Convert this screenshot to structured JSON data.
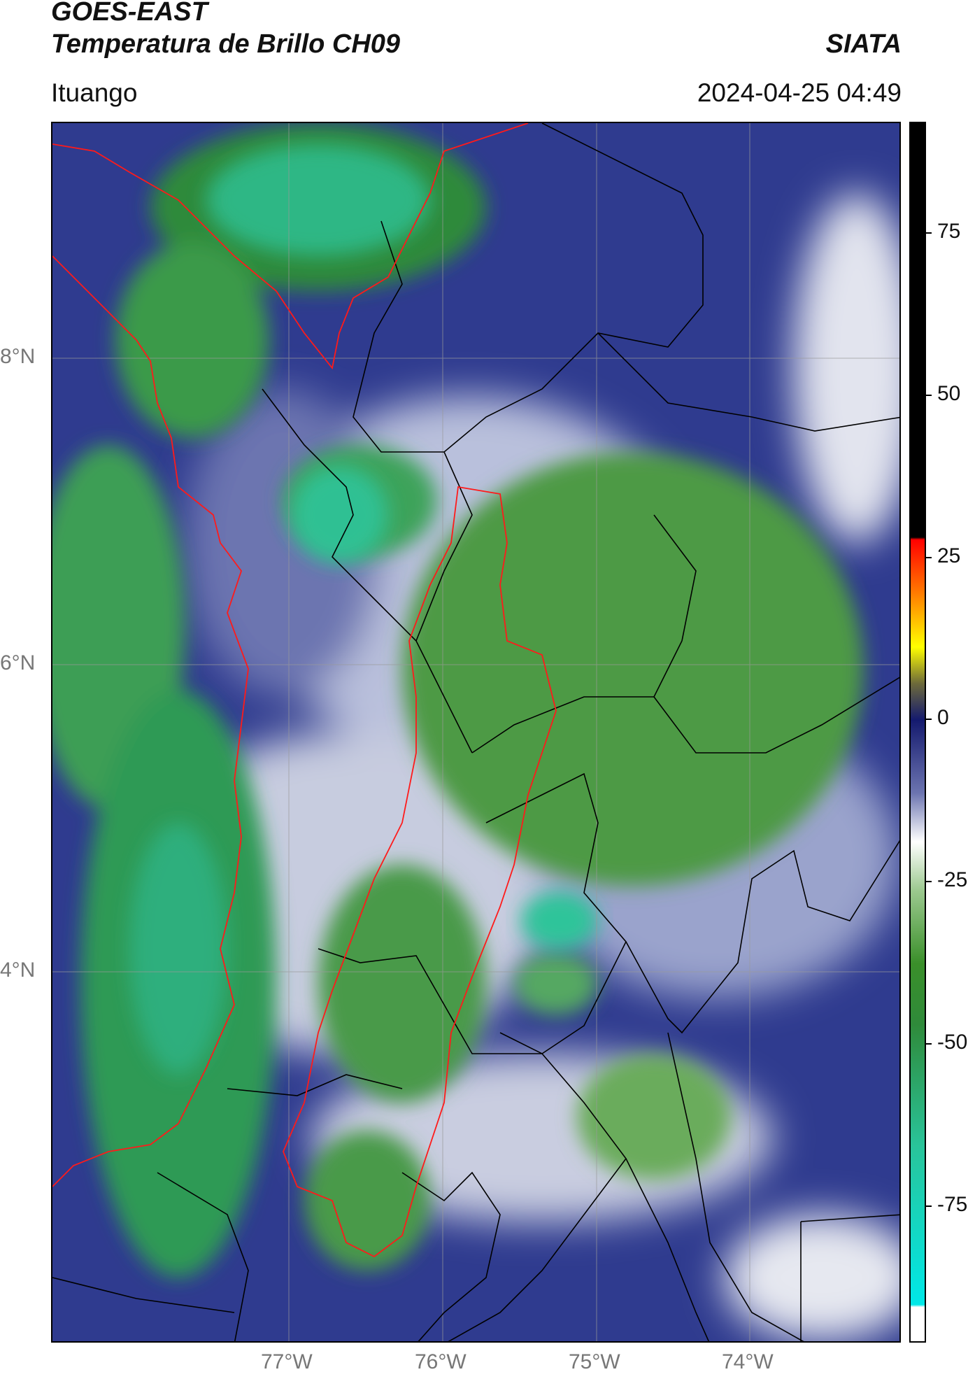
{
  "header": {
    "satellite": "GOES-EAST",
    "product": "Temperatura de Brillo CH09",
    "brand": "SIATA",
    "location": "Ituango",
    "datetime": "2024-04-25 04:49"
  },
  "map": {
    "lat_labels": [
      "8°N",
      "6°N",
      "4°N"
    ],
    "lon_labels": [
      "77°W",
      "76°W",
      "75°W",
      "74°W"
    ],
    "lat_values": [
      8,
      6,
      4
    ],
    "lon_values": [
      -77,
      -76,
      -75,
      -74
    ],
    "boundary_colors": {
      "coast": "#ff1a1a",
      "admin": "#000000",
      "grid": "#9a9a9a"
    }
  },
  "colorbar": {
    "ticks": [
      "75",
      "50",
      "25",
      "0",
      "-25",
      "-50",
      "-75"
    ],
    "tick_values": [
      75,
      50,
      25,
      0,
      -25,
      -50,
      -75
    ],
    "range": [
      -90,
      90
    ],
    "colors": {
      "black": "#000000",
      "red": "#ff0000",
      "yellow": "#ffff00",
      "navy": "#141a6e",
      "white": "#ffffff",
      "green": "#3a8f2a",
      "teal": "#29c49a",
      "cyan": "#00e8e8"
    }
  }
}
